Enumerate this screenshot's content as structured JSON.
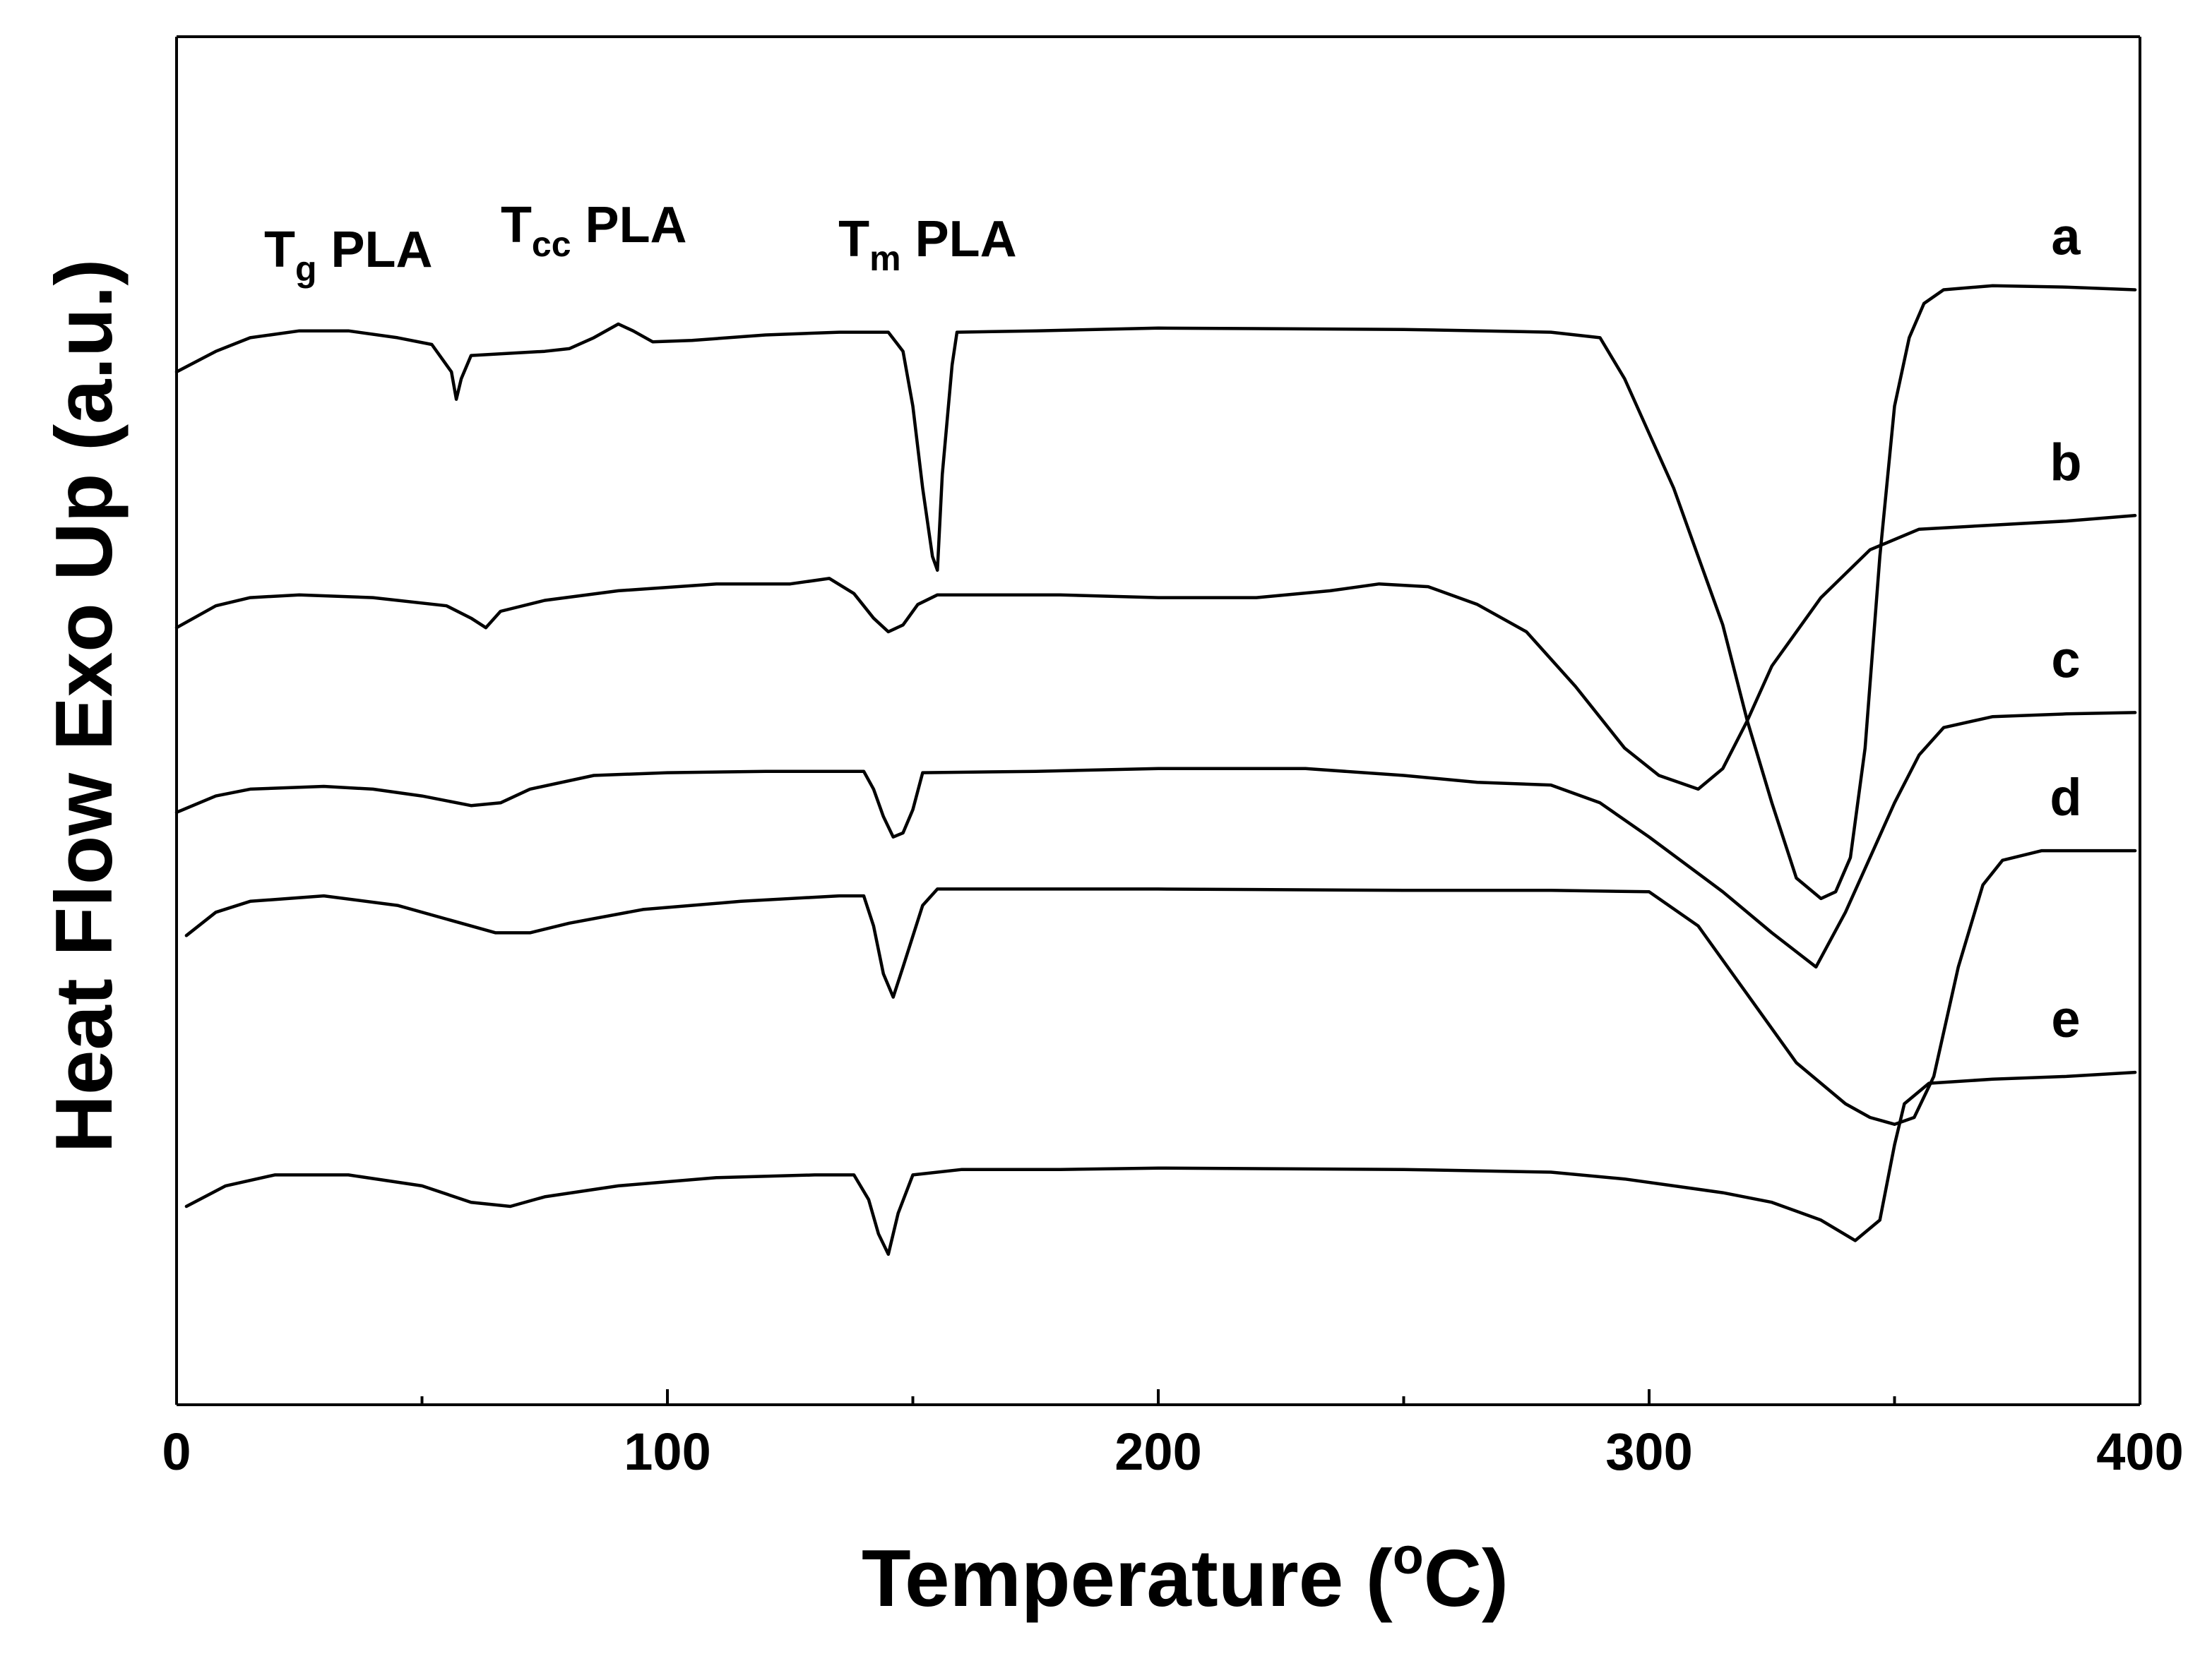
{
  "chart_data": {
    "type": "line",
    "title": "",
    "xlabel": "Temperature (°C)",
    "xlabel_parts": {
      "main": "Temperature (",
      "superscript": "o",
      "tail": "C)"
    },
    "ylabel": "Heat Flow Exo Up (a.u.)",
    "xlim": [
      0,
      400
    ],
    "ylim": [
      0,
      100
    ],
    "xticks": [
      0,
      100,
      200,
      300,
      400
    ],
    "xtick_labels": [
      "0",
      "100",
      "200",
      "300",
      "400"
    ],
    "y_ticks_shown": false,
    "grid": false,
    "annotations": [
      {
        "id": "tg",
        "main": "T",
        "sub": "g",
        "tail": " PLA",
        "x": 35
      },
      {
        "id": "tcc",
        "main": "T",
        "sub": "cc",
        "tail": " PLA",
        "x": 85
      },
      {
        "id": "tm",
        "main": "T",
        "sub": "m",
        "tail": " PLA",
        "x": 153
      }
    ],
    "series": [
      {
        "name": "a",
        "points": [
          [
            0,
            75.5
          ],
          [
            8,
            77
          ],
          [
            15,
            78
          ],
          [
            25,
            78.5
          ],
          [
            35,
            78.5
          ],
          [
            45,
            78
          ],
          [
            52,
            77.5
          ],
          [
            56,
            75.5
          ],
          [
            57,
            73.5
          ],
          [
            58,
            75
          ],
          [
            60,
            76.7
          ],
          [
            65,
            76.8
          ],
          [
            75,
            77
          ],
          [
            80,
            77.2
          ],
          [
            85,
            78
          ],
          [
            90,
            79
          ],
          [
            93,
            78.5
          ],
          [
            97,
            77.7
          ],
          [
            105,
            77.8
          ],
          [
            120,
            78.2
          ],
          [
            135,
            78.4
          ],
          [
            145,
            78.4
          ],
          [
            148,
            77
          ],
          [
            150,
            73
          ],
          [
            152,
            67
          ],
          [
            154,
            62
          ],
          [
            155,
            61
          ],
          [
            156,
            68
          ],
          [
            158,
            76
          ],
          [
            159,
            78.4
          ],
          [
            175,
            78.5
          ],
          [
            200,
            78.7
          ],
          [
            250,
            78.6
          ],
          [
            280,
            78.4
          ],
          [
            290,
            78
          ],
          [
            295,
            75
          ],
          [
            300,
            71
          ],
          [
            305,
            67
          ],
          [
            310,
            62
          ],
          [
            315,
            57
          ],
          [
            320,
            50
          ],
          [
            325,
            44
          ],
          [
            330,
            38.5
          ],
          [
            335,
            37
          ],
          [
            338,
            37.5
          ],
          [
            341,
            40
          ],
          [
            344,
            48
          ],
          [
            347,
            62
          ],
          [
            350,
            73
          ],
          [
            353,
            78
          ],
          [
            356,
            80.5
          ],
          [
            360,
            81.5
          ],
          [
            370,
            81.8
          ],
          [
            385,
            81.7
          ],
          [
            399,
            81.5
          ]
        ]
      },
      {
        "name": "b",
        "points": [
          [
            0,
            56.8
          ],
          [
            8,
            58.4
          ],
          [
            15,
            59
          ],
          [
            25,
            59.2
          ],
          [
            40,
            59
          ],
          [
            55,
            58.4
          ],
          [
            60,
            57.5
          ],
          [
            63,
            56.8
          ],
          [
            66,
            58
          ],
          [
            75,
            58.8
          ],
          [
            90,
            59.5
          ],
          [
            110,
            60
          ],
          [
            125,
            60
          ],
          [
            133,
            60.4
          ],
          [
            138,
            59.3
          ],
          [
            142,
            57.5
          ],
          [
            145,
            56.5
          ],
          [
            148,
            57
          ],
          [
            151,
            58.5
          ],
          [
            155,
            59.2
          ],
          [
            180,
            59.2
          ],
          [
            200,
            59
          ],
          [
            220,
            59
          ],
          [
            235,
            59.5
          ],
          [
            245,
            60
          ],
          [
            255,
            59.8
          ],
          [
            265,
            58.5
          ],
          [
            275,
            56.5
          ],
          [
            285,
            52.5
          ],
          [
            295,
            48
          ],
          [
            302,
            46
          ],
          [
            310,
            45
          ],
          [
            315,
            46.5
          ],
          [
            320,
            50
          ],
          [
            325,
            54
          ],
          [
            335,
            59
          ],
          [
            345,
            62.5
          ],
          [
            355,
            64
          ],
          [
            370,
            64.3
          ],
          [
            385,
            64.6
          ],
          [
            399,
            65
          ]
        ]
      },
      {
        "name": "c",
        "points": [
          [
            0,
            43.3
          ],
          [
            8,
            44.5
          ],
          [
            15,
            45
          ],
          [
            30,
            45.2
          ],
          [
            40,
            45
          ],
          [
            50,
            44.5
          ],
          [
            60,
            43.8
          ],
          [
            66,
            44
          ],
          [
            72,
            45
          ],
          [
            85,
            46
          ],
          [
            100,
            46.2
          ],
          [
            120,
            46.3
          ],
          [
            135,
            46.3
          ],
          [
            140,
            46.3
          ],
          [
            142,
            45
          ],
          [
            144,
            43
          ],
          [
            146,
            41.5
          ],
          [
            148,
            41.8
          ],
          [
            150,
            43.5
          ],
          [
            152,
            46.2
          ],
          [
            175,
            46.3
          ],
          [
            200,
            46.5
          ],
          [
            230,
            46.5
          ],
          [
            250,
            46
          ],
          [
            265,
            45.5
          ],
          [
            280,
            45.3
          ],
          [
            290,
            44
          ],
          [
            300,
            41.5
          ],
          [
            315,
            37.5
          ],
          [
            325,
            34.5
          ],
          [
            334,
            32
          ],
          [
            340,
            36
          ],
          [
            345,
            40
          ],
          [
            350,
            44
          ],
          [
            355,
            47.5
          ],
          [
            360,
            49.5
          ],
          [
            370,
            50.3
          ],
          [
            385,
            50.5
          ],
          [
            399,
            50.6
          ]
        ]
      },
      {
        "name": "d",
        "points": [
          [
            2,
            34.3
          ],
          [
            8,
            36
          ],
          [
            15,
            36.8
          ],
          [
            30,
            37.2
          ],
          [
            45,
            36.5
          ],
          [
            55,
            35.5
          ],
          [
            65,
            34.5
          ],
          [
            72,
            34.5
          ],
          [
            80,
            35.2
          ],
          [
            95,
            36.2
          ],
          [
            115,
            36.8
          ],
          [
            135,
            37.2
          ],
          [
            140,
            37.2
          ],
          [
            142,
            35
          ],
          [
            144,
            31.5
          ],
          [
            146,
            29.8
          ],
          [
            148,
            32
          ],
          [
            152,
            36.5
          ],
          [
            155,
            37.7
          ],
          [
            200,
            37.7
          ],
          [
            250,
            37.6
          ],
          [
            280,
            37.6
          ],
          [
            300,
            37.5
          ],
          [
            310,
            35
          ],
          [
            320,
            30
          ],
          [
            330,
            25
          ],
          [
            340,
            22
          ],
          [
            345,
            21
          ],
          [
            350,
            20.5
          ],
          [
            354,
            21
          ],
          [
            358,
            24
          ],
          [
            363,
            32
          ],
          [
            368,
            38
          ],
          [
            372,
            39.8
          ],
          [
            380,
            40.5
          ],
          [
            390,
            40.5
          ],
          [
            399,
            40.5
          ]
        ]
      },
      {
        "name": "e",
        "points": [
          [
            2,
            14.5
          ],
          [
            10,
            16
          ],
          [
            20,
            16.8
          ],
          [
            35,
            16.8
          ],
          [
            50,
            16
          ],
          [
            60,
            14.8
          ],
          [
            68,
            14.5
          ],
          [
            75,
            15.2
          ],
          [
            90,
            16
          ],
          [
            110,
            16.6
          ],
          [
            130,
            16.8
          ],
          [
            138,
            16.8
          ],
          [
            141,
            15
          ],
          [
            143,
            12.5
          ],
          [
            145,
            11
          ],
          [
            147,
            14
          ],
          [
            150,
            16.8
          ],
          [
            160,
            17.2
          ],
          [
            180,
            17.2
          ],
          [
            200,
            17.3
          ],
          [
            250,
            17.2
          ],
          [
            280,
            17
          ],
          [
            295,
            16.5
          ],
          [
            305,
            16
          ],
          [
            315,
            15.5
          ],
          [
            325,
            14.8
          ],
          [
            335,
            13.5
          ],
          [
            342,
            12
          ],
          [
            347,
            13.5
          ],
          [
            350,
            19
          ],
          [
            352,
            22
          ],
          [
            357,
            23.5
          ],
          [
            370,
            23.8
          ],
          [
            385,
            24
          ],
          [
            399,
            24.3
          ]
        ]
      }
    ]
  }
}
